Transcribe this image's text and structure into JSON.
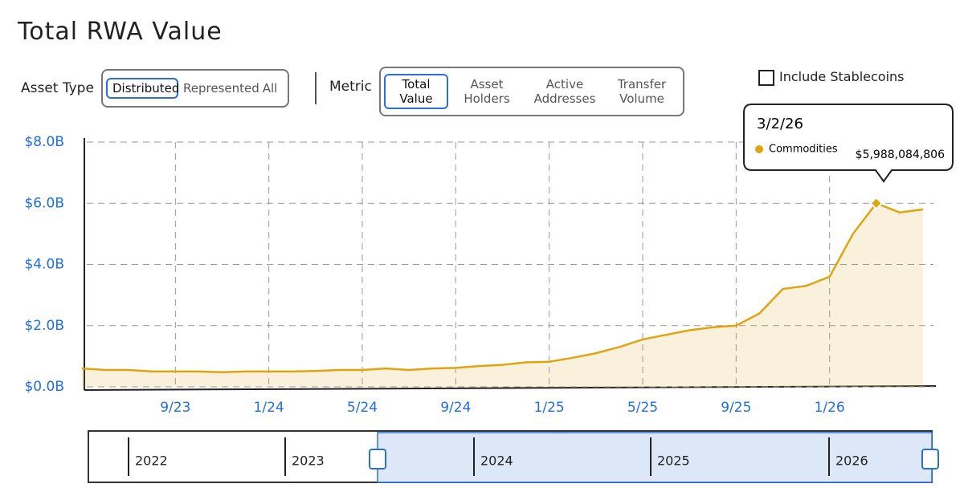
{
  "header": {
    "title": "Total RWA Value"
  },
  "controls": {
    "asset_type": {
      "label": "Asset Type",
      "options": [
        "Distributed",
        "Represented",
        "All"
      ]
    },
    "metric": {
      "label": "Metric",
      "options": [
        "Total Value",
        "Asset Holders",
        "Active Addresses",
        "Transfer Volume"
      ]
    },
    "checkbox": {
      "label": "Include Stablecoins"
    }
  },
  "tooltip": {
    "date": "3/2/26",
    "value": "$5,988,084,806"
  },
  "navigator": {
    "years": [
      "2022",
      "2023",
      "2024",
      "2025",
      "2026"
    ]
  },
  "chart_data": {
    "type": "area",
    "x": [
      "2023-05",
      "2023-06",
      "2023-07",
      "2023-08",
      "2023-09",
      "2023-10",
      "2023-11",
      "2023-12",
      "2024-01",
      "2024-02",
      "2024-03",
      "2024-04",
      "2024-05",
      "2024-06",
      "2024-07",
      "2024-08",
      "2024-09",
      "2024-10",
      "2024-11",
      "2024-12",
      "2025-01",
      "2025-02",
      "2025-03",
      "2025-04",
      "2025-05",
      "2025-06",
      "2025-07",
      "2025-08",
      "2025-09",
      "2025-10",
      "2025-11",
      "2025-12",
      "2026-01",
      "2026-02",
      "2026-03",
      "2026-04",
      "2026-05"
    ],
    "series": [
      {
        "name": "Commodities",
        "color": "#e0a412",
        "values": [
          0.6,
          0.55,
          0.55,
          0.5,
          0.5,
          0.5,
          0.48,
          0.5,
          0.5,
          0.5,
          0.52,
          0.55,
          0.55,
          0.6,
          0.55,
          0.6,
          0.62,
          0.68,
          0.72,
          0.8,
          0.82,
          0.95,
          1.1,
          1.3,
          1.55,
          1.7,
          1.85,
          1.95,
          2.0,
          2.4,
          3.2,
          3.3,
          3.6,
          5.0,
          6.0,
          5.7,
          5.8
        ]
      }
    ],
    "xlim": [
      "2023-05",
      "2026-05"
    ],
    "xticks": [
      {
        "value": "2023-09",
        "label": "9/23"
      },
      {
        "value": "2024-01",
        "label": "1/24"
      },
      {
        "value": "2024-05",
        "label": "5/24"
      },
      {
        "value": "2024-09",
        "label": "9/24"
      },
      {
        "value": "2025-01",
        "label": "1/25"
      },
      {
        "value": "2025-05",
        "label": "5/25"
      },
      {
        "value": "2025-09",
        "label": "9/25"
      },
      {
        "value": "2026-01",
        "label": "1/26"
      }
    ],
    "ylim": [
      0,
      8
    ],
    "yticks": [
      {
        "value": 0,
        "label": "$0.0B"
      },
      {
        "value": 2,
        "label": "$2.0B"
      },
      {
        "value": 4,
        "label": "$4.0B"
      },
      {
        "value": 6,
        "label": "$6.0B"
      },
      {
        "value": 8,
        "label": "$8.0B"
      }
    ],
    "grid": true
  }
}
